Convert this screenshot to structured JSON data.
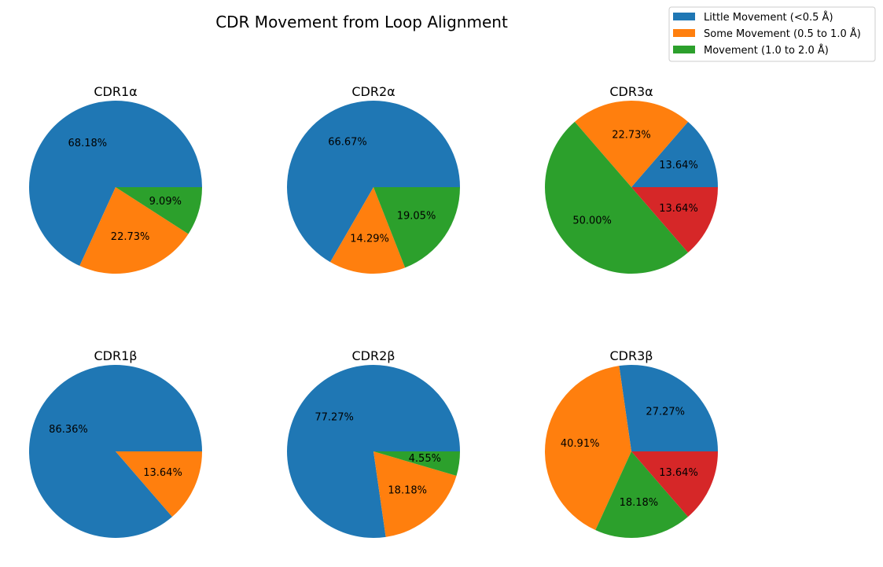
{
  "chart_data": {
    "type": "pie",
    "title": "CDR Movement from Loop Alignment",
    "legend": {
      "placement": "top-right",
      "entries": [
        {
          "label": "Little Movement (<0.5 Å)",
          "color": "#1f77b4"
        },
        {
          "label": "Some Movement (0.5 to 1.0 Å)",
          "color": "#ff7f0e"
        },
        {
          "label": "Movement (1.0 to 2.0 Å)",
          "color": "#2ca02c"
        }
      ]
    },
    "slice_colors": [
      "#1f77b4",
      "#ff7f0e",
      "#2ca02c",
      "#d62728"
    ],
    "pies": [
      {
        "title": "CDR1α",
        "values": [
          68.18,
          22.73,
          9.09
        ],
        "labels": [
          "68.18%",
          "22.73%",
          "9.09%"
        ]
      },
      {
        "title": "CDR2α",
        "values": [
          66.67,
          14.29,
          19.05
        ],
        "labels": [
          "66.67%",
          "14.29%",
          "19.05%"
        ]
      },
      {
        "title": "CDR3α",
        "values": [
          13.64,
          22.73,
          50.0,
          13.64
        ],
        "labels": [
          "13.64%",
          "22.73%",
          "50.00%",
          "13.64%"
        ]
      },
      {
        "title": "CDR1β",
        "values": [
          86.36,
          13.64
        ],
        "labels": [
          "86.36%",
          "13.64%"
        ]
      },
      {
        "title": "CDR2β",
        "values": [
          77.27,
          18.18,
          4.55
        ],
        "labels": [
          "77.27%",
          "18.18%",
          "4.55%"
        ]
      },
      {
        "title": "CDR3β",
        "values": [
          27.27,
          40.91,
          18.18,
          13.64
        ],
        "labels": [
          "27.27%",
          "40.91%",
          "18.18%",
          "13.64%"
        ]
      }
    ]
  }
}
